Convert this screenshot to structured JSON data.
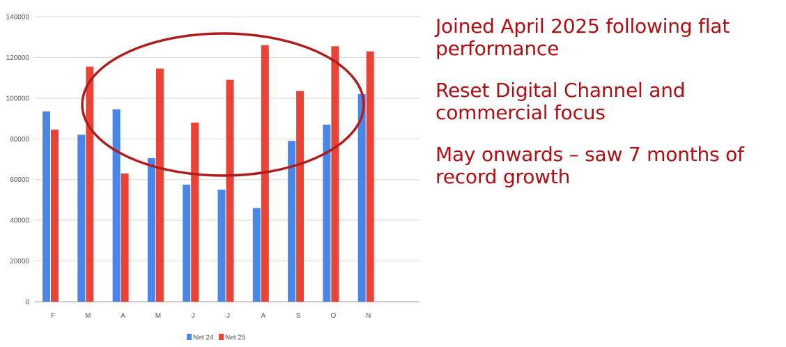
{
  "chart_data": {
    "type": "bar",
    "categories": [
      "F",
      "M",
      "A",
      "M",
      "J",
      "J",
      "A",
      "S",
      "O",
      "N"
    ],
    "series": [
      {
        "name": "Net 24",
        "color": "#4a86e8",
        "values": [
          93500,
          82000,
          94500,
          70500,
          57500,
          55000,
          46000,
          79000,
          87000,
          102000
        ]
      },
      {
        "name": "Net 25",
        "color": "#ea4335",
        "values": [
          84500,
          115500,
          63000,
          114500,
          88000,
          109000,
          126000,
          103500,
          125500,
          123000
        ]
      }
    ],
    "y_ticks": [
      "0",
      "20000",
      "40000",
      "60000",
      "80000",
      "100000",
      "120000",
      "140000"
    ],
    "ylim": [
      0,
      140000
    ],
    "grid": true,
    "legend_position": "bottom-center",
    "annotation": {
      "shape": "ellipse",
      "color": "#b01c1c"
    }
  },
  "notes": [
    "Joined April 2025 following flat performance",
    "Reset Digital Channel and commercial focus",
    "May onwards – saw 7 months of record growth"
  ]
}
